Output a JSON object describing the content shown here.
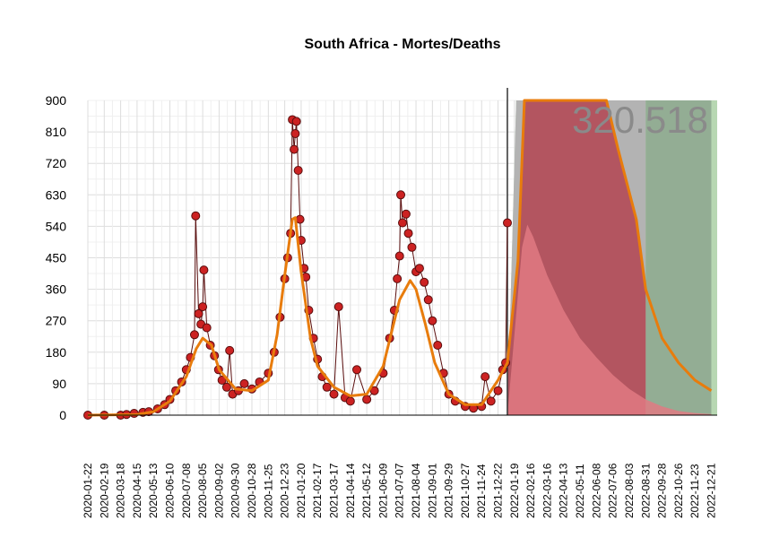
{
  "chart_data": {
    "type": "line",
    "title": "South Africa - Mortes/Deaths",
    "xlabel": "",
    "ylabel": "",
    "ylim": [
      0,
      900
    ],
    "yticks": [
      "0",
      "90",
      "180",
      "270",
      "360",
      "450",
      "540",
      "630",
      "720",
      "810",
      "900"
    ],
    "x_range": [
      "2020-01-22",
      "2022-12-31"
    ],
    "xticks": [
      "2020-01-22",
      "2020-02-19",
      "2020-03-18",
      "2020-04-15",
      "2020-05-13",
      "2020-06-10",
      "2020-07-08",
      "2020-08-05",
      "2020-09-02",
      "2020-09-30",
      "2020-10-28",
      "2020-11-25",
      "2020-12-23",
      "2021-01-20",
      "2021-02-17",
      "2021-03-17",
      "2021-04-14",
      "2021-05-12",
      "2021-06-09",
      "2021-07-07",
      "2021-08-04",
      "2021-09-01",
      "2021-09-29",
      "2021-10-27",
      "2021-11-24",
      "2021-12-22",
      "2022-01-19",
      "2022-02-16",
      "2022-03-16",
      "2022-04-13",
      "2022-05-11",
      "2022-06-08",
      "2022-07-06",
      "2022-08-03",
      "2022-08-31",
      "2022-09-28",
      "2022-10-26",
      "2022-11-23",
      "2022-12-21"
    ],
    "grid": true,
    "forecast_start": "2022-01-07",
    "annotations": [
      "320.518"
    ],
    "colors": {
      "observed_points": "#cc2222",
      "observed_outline": "#5a0e0e",
      "fit_line": "#e87c0c",
      "forecast_daily": "#e07a82",
      "forecast_cumulative_red": "#b35560",
      "forecast_cumulative_grey": "#b3b3b3",
      "forecast_cumulative_green": "#b7d7b2",
      "forecast_cumulative_darkgreen": "#93ad94",
      "forecast_start_line": "#333333",
      "axis": "#000000"
    },
    "series": [
      {
        "role": "observed_daily_deaths",
        "points": [
          [
            "2020-01-22",
            0
          ],
          [
            "2020-02-19",
            0
          ],
          [
            "2020-03-18",
            0
          ],
          [
            "2020-03-28",
            2
          ],
          [
            "2020-04-10",
            5
          ],
          [
            "2020-04-25",
            8
          ],
          [
            "2020-05-05",
            10
          ],
          [
            "2020-05-20",
            18
          ],
          [
            "2020-06-01",
            30
          ],
          [
            "2020-06-10",
            45
          ],
          [
            "2020-06-20",
            70
          ],
          [
            "2020-06-30",
            95
          ],
          [
            "2020-07-08",
            130
          ],
          [
            "2020-07-15",
            165
          ],
          [
            "2020-07-22",
            230
          ],
          [
            "2020-07-24",
            570
          ],
          [
            "2020-07-29",
            290
          ],
          [
            "2020-08-02",
            260
          ],
          [
            "2020-08-05",
            310
          ],
          [
            "2020-08-07",
            415
          ],
          [
            "2020-08-12",
            250
          ],
          [
            "2020-08-18",
            200
          ],
          [
            "2020-08-25",
            170
          ],
          [
            "2020-09-01",
            130
          ],
          [
            "2020-09-07",
            100
          ],
          [
            "2020-09-15",
            80
          ],
          [
            "2020-09-20",
            185
          ],
          [
            "2020-09-25",
            60
          ],
          [
            "2020-10-05",
            70
          ],
          [
            "2020-10-15",
            90
          ],
          [
            "2020-10-28",
            75
          ],
          [
            "2020-11-10",
            95
          ],
          [
            "2020-11-25",
            120
          ],
          [
            "2020-12-05",
            180
          ],
          [
            "2020-12-15",
            280
          ],
          [
            "2020-12-23",
            390
          ],
          [
            "2020-12-28",
            450
          ],
          [
            "2021-01-02",
            520
          ],
          [
            "2021-01-05",
            845
          ],
          [
            "2021-01-08",
            760
          ],
          [
            "2021-01-10",
            805
          ],
          [
            "2021-01-12",
            840
          ],
          [
            "2021-01-15",
            700
          ],
          [
            "2021-01-18",
            560
          ],
          [
            "2021-01-20",
            500
          ],
          [
            "2021-01-25",
            420
          ],
          [
            "2021-01-28",
            395
          ],
          [
            "2021-02-02",
            300
          ],
          [
            "2021-02-10",
            220
          ],
          [
            "2021-02-17",
            160
          ],
          [
            "2021-02-25",
            110
          ],
          [
            "2021-03-05",
            80
          ],
          [
            "2021-03-17",
            60
          ],
          [
            "2021-03-25",
            310
          ],
          [
            "2021-04-05",
            50
          ],
          [
            "2021-04-14",
            40
          ],
          [
            "2021-04-25",
            130
          ],
          [
            "2021-05-12",
            45
          ],
          [
            "2021-05-25",
            70
          ],
          [
            "2021-06-09",
            120
          ],
          [
            "2021-06-20",
            220
          ],
          [
            "2021-06-28",
            300
          ],
          [
            "2021-07-03",
            390
          ],
          [
            "2021-07-07",
            455
          ],
          [
            "2021-07-09",
            630
          ],
          [
            "2021-07-12",
            550
          ],
          [
            "2021-07-18",
            575
          ],
          [
            "2021-07-22",
            520
          ],
          [
            "2021-07-28",
            480
          ],
          [
            "2021-08-04",
            410
          ],
          [
            "2021-08-10",
            420
          ],
          [
            "2021-08-18",
            380
          ],
          [
            "2021-08-25",
            330
          ],
          [
            "2021-09-01",
            270
          ],
          [
            "2021-09-10",
            200
          ],
          [
            "2021-09-20",
            120
          ],
          [
            "2021-09-29",
            60
          ],
          [
            "2021-10-10",
            40
          ],
          [
            "2021-10-27",
            25
          ],
          [
            "2021-11-10",
            20
          ],
          [
            "2021-11-24",
            25
          ],
          [
            "2021-11-30",
            110
          ],
          [
            "2021-12-10",
            40
          ],
          [
            "2021-12-22",
            70
          ],
          [
            "2021-12-30",
            130
          ],
          [
            "2022-01-04",
            150
          ],
          [
            "2022-01-07",
            550
          ]
        ]
      },
      {
        "role": "smoothed_fit",
        "points": [
          [
            "2020-01-22",
            0
          ],
          [
            "2020-04-15",
            2
          ],
          [
            "2020-05-13",
            10
          ],
          [
            "2020-06-10",
            40
          ],
          [
            "2020-07-08",
            110
          ],
          [
            "2020-07-25",
            190
          ],
          [
            "2020-08-05",
            220
          ],
          [
            "2020-08-20",
            200
          ],
          [
            "2020-09-02",
            130
          ],
          [
            "2020-09-30",
            75
          ],
          [
            "2020-10-28",
            70
          ],
          [
            "2020-11-25",
            100
          ],
          [
            "2020-12-10",
            230
          ],
          [
            "2020-12-23",
            400
          ],
          [
            "2021-01-05",
            560
          ],
          [
            "2021-01-10",
            565
          ],
          [
            "2021-01-20",
            410
          ],
          [
            "2021-02-05",
            220
          ],
          [
            "2021-02-17",
            140
          ],
          [
            "2021-03-17",
            80
          ],
          [
            "2021-04-14",
            55
          ],
          [
            "2021-05-12",
            60
          ],
          [
            "2021-06-09",
            140
          ],
          [
            "2021-07-07",
            330
          ],
          [
            "2021-07-25",
            385
          ],
          [
            "2021-08-04",
            360
          ],
          [
            "2021-08-20",
            260
          ],
          [
            "2021-09-05",
            150
          ],
          [
            "2021-09-29",
            60
          ],
          [
            "2021-10-27",
            30
          ],
          [
            "2021-11-24",
            30
          ],
          [
            "2021-12-22",
            100
          ],
          [
            "2022-01-07",
            150
          ],
          [
            "2022-01-25",
            440
          ],
          [
            "2022-02-05",
            900
          ],
          [
            "2022-06-25",
            900
          ],
          [
            "2022-07-15",
            760
          ],
          [
            "2022-08-15",
            560
          ],
          [
            "2022-08-31",
            360
          ],
          [
            "2022-09-28",
            220
          ],
          [
            "2022-10-26",
            150
          ],
          [
            "2022-11-23",
            100
          ],
          [
            "2022-12-21",
            70
          ]
        ]
      },
      {
        "role": "forecast_daily_deaths",
        "points": [
          [
            "2022-01-07",
            0
          ],
          [
            "2022-01-20",
            250
          ],
          [
            "2022-02-01",
            480
          ],
          [
            "2022-02-10",
            545
          ],
          [
            "2022-02-20",
            510
          ],
          [
            "2022-03-16",
            400
          ],
          [
            "2022-04-13",
            300
          ],
          [
            "2022-05-11",
            220
          ],
          [
            "2022-06-08",
            165
          ],
          [
            "2022-07-06",
            115
          ],
          [
            "2022-08-03",
            75
          ],
          [
            "2022-08-31",
            45
          ],
          [
            "2022-09-28",
            25
          ],
          [
            "2022-10-26",
            12
          ],
          [
            "2022-11-23",
            6
          ],
          [
            "2022-12-21",
            3
          ]
        ]
      }
    ],
    "forecast_bands": [
      {
        "name_role": "red",
        "from": "2022-01-07",
        "to": "2022-08-31"
      },
      {
        "name_role": "grey",
        "from": "2022-01-07",
        "to": "2022-08-31"
      },
      {
        "name_role": "darkgreen",
        "from": "2022-08-31",
        "to": "2022-12-21"
      },
      {
        "name_role": "lightgreen",
        "from": "2022-01-07",
        "to": "2022-12-31"
      }
    ]
  }
}
